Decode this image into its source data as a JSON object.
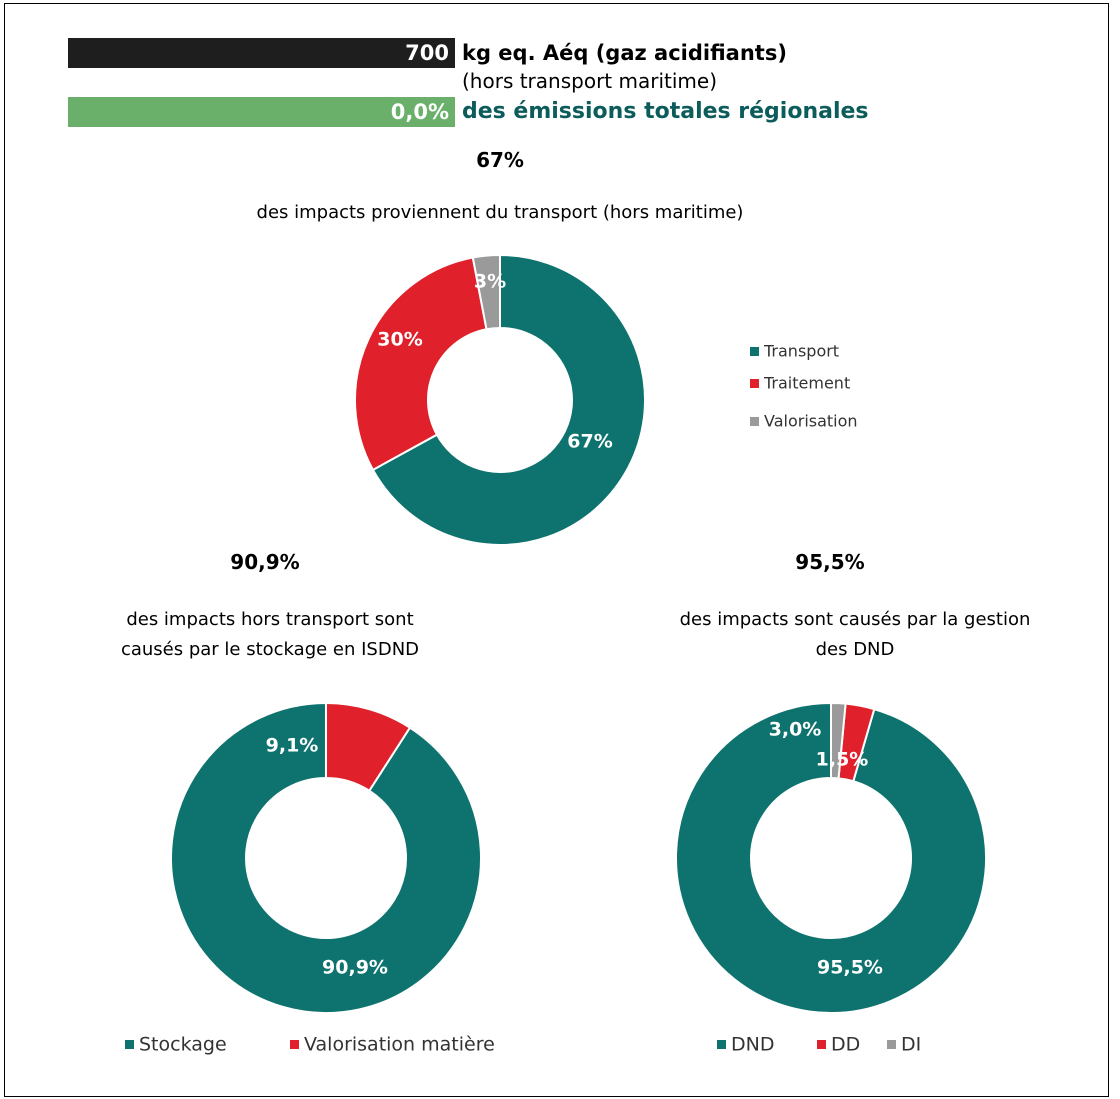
{
  "header": {
    "amount": 700,
    "unit": "kg eq. Aéq (gaz acidifiants)",
    "note": "(hors transport maritime)",
    "share": "0,0%",
    "share_text": "des émissions totales régionales"
  },
  "chart_data": [
    {
      "type": "donut",
      "title": "67%",
      "subtitle": "des impacts proviennent du transport (hors maritime)",
      "categories": [
        "Transport",
        "Traitement",
        "Valorisation"
      ],
      "values": [
        67,
        30,
        3
      ],
      "value_labels": [
        "67%",
        "30%",
        "3%"
      ],
      "colors": [
        "#0e736e",
        "#e0202a",
        "#9a9a9a"
      ],
      "legend": "right"
    },
    {
      "type": "donut",
      "title": "90,9%",
      "subtitle": "des impacts hors transport sont causés par le stockage en ISDND",
      "categories": [
        "Stockage",
        "Valorisation matière"
      ],
      "values": [
        90.9,
        9.1
      ],
      "value_labels": [
        "90,9%",
        "9,1%"
      ],
      "colors": [
        "#0e736e",
        "#e0202a"
      ],
      "legend": "bottom"
    },
    {
      "type": "donut",
      "title": "95,5%",
      "subtitle": "des impacts sont causés par la gestion des DND",
      "categories": [
        "DND",
        "DD",
        "DI"
      ],
      "values": [
        95.5,
        3.0,
        1.5
      ],
      "value_labels": [
        "95,5%",
        "3,0%",
        "1,5%"
      ],
      "colors": [
        "#0e736e",
        "#e0202a",
        "#9a9a9a"
      ],
      "legend": "bottom"
    }
  ]
}
